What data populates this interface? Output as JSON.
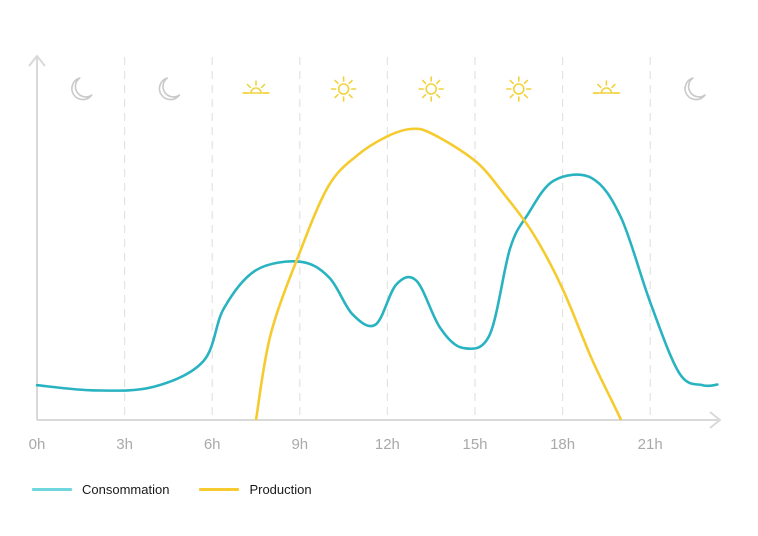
{
  "chart_data": {
    "type": "line",
    "x_ticks": [
      "0h",
      "3h",
      "6h",
      "9h",
      "12h",
      "15h",
      "18h",
      "21h"
    ],
    "xlim": [
      0,
      23.3
    ],
    "ylim": [
      0,
      100
    ],
    "grid": "vertical dashed lines at each 3h tick",
    "legend_position": "bottom-left",
    "period_icons": [
      {
        "hour": 1.5,
        "icon": "moon-icon"
      },
      {
        "hour": 4.5,
        "icon": "moon-icon"
      },
      {
        "hour": 7.5,
        "icon": "sunrise-icon"
      },
      {
        "hour": 10.5,
        "icon": "sun-icon"
      },
      {
        "hour": 13.5,
        "icon": "sun-icon"
      },
      {
        "hour": 16.5,
        "icon": "sun-icon"
      },
      {
        "hour": 19.5,
        "icon": "sunset-icon"
      },
      {
        "hour": 22.5,
        "icon": "moon-icon"
      }
    ],
    "series": [
      {
        "name": "Consommation",
        "color": "#29b3c1",
        "x": [
          0,
          2,
          4,
          5.7,
          6.4,
          7.5,
          9,
          10,
          10.8,
          11.6,
          12.3,
          13,
          13.8,
          14.6,
          15.5,
          16.2,
          16.8,
          17.7,
          19,
          20,
          21,
          22,
          22.8,
          23.3
        ],
        "y": [
          11.4,
          9.7,
          10.9,
          19.3,
          36.6,
          49.1,
          51.9,
          46.8,
          34.7,
          31.3,
          44.4,
          45.6,
          30.3,
          23.6,
          27.9,
          56.2,
          67.3,
          78.5,
          79.3,
          66.4,
          38.6,
          15.3,
          11.4,
          11.6
        ]
      },
      {
        "name": "Production",
        "color": "#f5cb2f",
        "x": [
          7.5,
          8,
          9,
          10,
          11,
          12,
          12.8,
          13.5,
          15,
          16,
          17,
          18,
          19,
          20,
          20.4
        ],
        "y": [
          0,
          28,
          55,
          77,
          87,
          93,
          95.4,
          94,
          85,
          74,
          61,
          43,
          20,
          0,
          -10
        ]
      }
    ]
  }
}
